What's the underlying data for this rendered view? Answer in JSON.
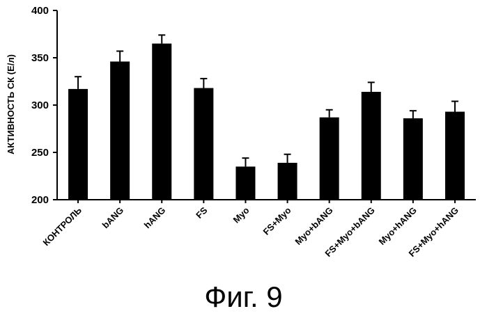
{
  "caption": "Фиг. 9",
  "chart_data": {
    "type": "bar",
    "ylabel": "АКТИВНОСТЬ СК (Е/л)",
    "xlabel": "",
    "ylim": [
      200,
      400
    ],
    "yticks": [
      200,
      250,
      300,
      350,
      400
    ],
    "categories": [
      "КОНТРОЛЬ",
      "bANG",
      "hANG",
      "FS",
      "Myo",
      "FS+Myo",
      "Myo+bANG",
      "FS+Myo+bANG",
      "Myo+hANG",
      "FS+Myo+hANG"
    ],
    "values": [
      317,
      346,
      365,
      318,
      235,
      239,
      287,
      314,
      286,
      293
    ],
    "errors": [
      13,
      11,
      9,
      10,
      9,
      9,
      8,
      10,
      8,
      11
    ],
    "bar_color": "#000000"
  }
}
